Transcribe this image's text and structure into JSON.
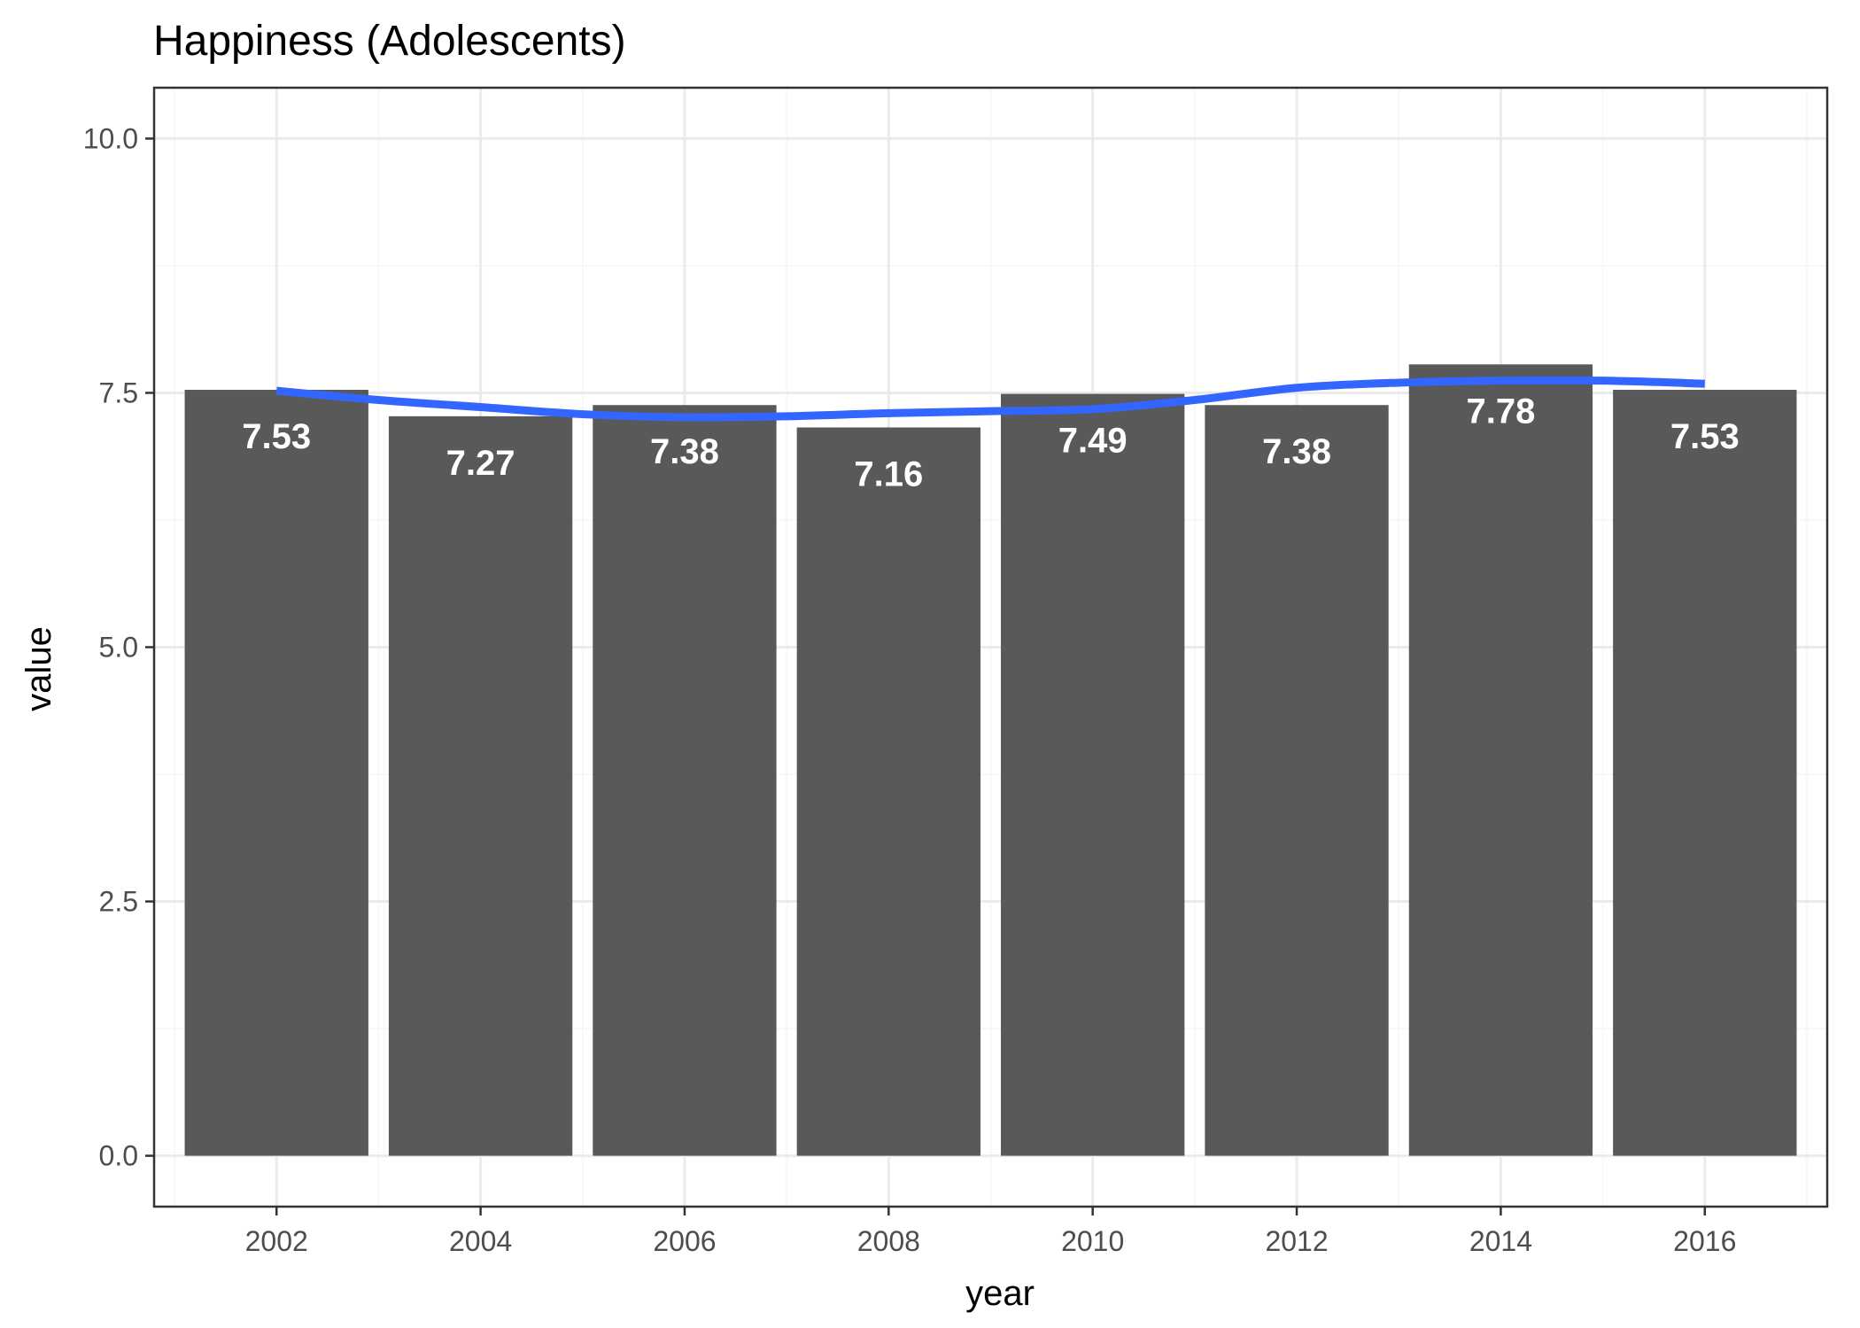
{
  "chart_data": {
    "type": "bar",
    "title": "Happiness (Adolescents)",
    "xlabel": "year",
    "ylabel": "value",
    "categories": [
      2002,
      2004,
      2006,
      2008,
      2010,
      2012,
      2014,
      2016
    ],
    "values": [
      7.53,
      7.27,
      7.38,
      7.16,
      7.49,
      7.38,
      7.78,
      7.53
    ],
    "data_labels": [
      "7.53",
      "7.27",
      "7.38",
      "7.16",
      "7.49",
      "7.38",
      "7.78",
      "7.53"
    ],
    "xticks": [
      "2002",
      "2004",
      "2006",
      "2008",
      "2010",
      "2012",
      "2014",
      "2016"
    ],
    "yticks": [
      "0.0",
      "2.5",
      "5.0",
      "7.5",
      "10.0"
    ],
    "ylim": [
      -0.5,
      10.5
    ],
    "xlim": [
      2000.8,
      2017.2
    ],
    "grid": true,
    "smooth": {
      "type": "line",
      "x": [
        2002,
        2003,
        2004,
        2005,
        2006,
        2007,
        2008,
        2009,
        2010,
        2011,
        2012,
        2013,
        2014,
        2015,
        2016
      ],
      "y": [
        7.52,
        7.43,
        7.36,
        7.29,
        7.26,
        7.27,
        7.3,
        7.32,
        7.34,
        7.43,
        7.55,
        7.6,
        7.62,
        7.62,
        7.59
      ]
    },
    "colors": {
      "bar": "#595959",
      "smooth": "#3366ff",
      "grid_major": "#ebebeb",
      "grid_minor": "#f5f5f5",
      "panel_border": "#333333",
      "tick": "#333333"
    }
  }
}
